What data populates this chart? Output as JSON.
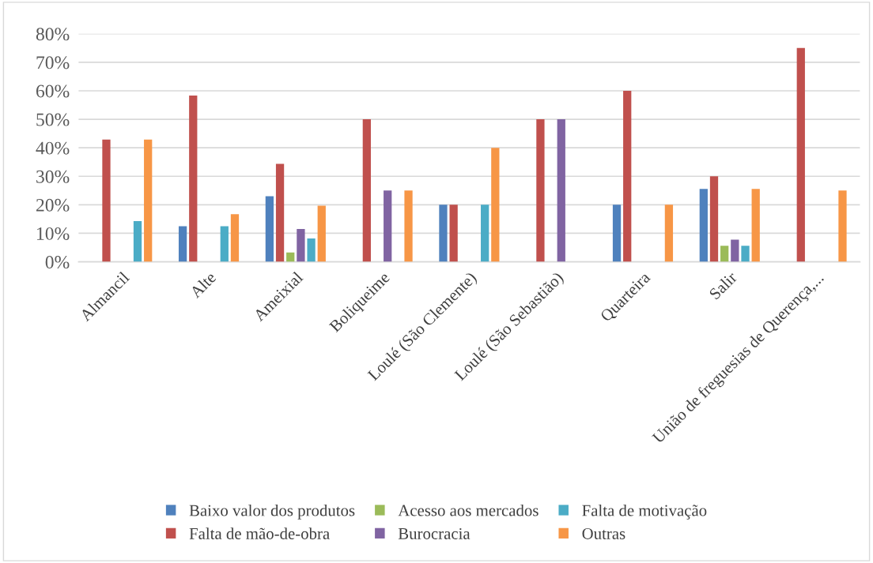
{
  "chart_data": {
    "type": "bar",
    "categories": [
      "Almancil",
      "Alte",
      "Ameixial",
      "Boliqueime",
      "Loulé (São Clemente)",
      "Loulé (São Sebastião)",
      "Quarteira",
      "Salir",
      "União de freguesias de Querença,..."
    ],
    "series": [
      {
        "name": "Baixo valor dos produtos",
        "color": "#4f81bd",
        "values": [
          0,
          12.5,
          23,
          0,
          20,
          0,
          20,
          25.6,
          0
        ]
      },
      {
        "name": "Falta de mão-de-obra",
        "color": "#c0504d",
        "values": [
          42.9,
          58.3,
          34.4,
          50,
          20,
          50,
          60,
          30,
          75
        ]
      },
      {
        "name": "Acesso aos mercados",
        "color": "#9bbb59",
        "values": [
          0,
          0,
          3.3,
          0,
          0,
          0,
          0,
          5.6,
          0
        ]
      },
      {
        "name": "Burocracia",
        "color": "#8064a2",
        "values": [
          0,
          0,
          11.5,
          25,
          0,
          50,
          0,
          7.8,
          0
        ]
      },
      {
        "name": "Falta de motivação",
        "color": "#4bacc6",
        "values": [
          14.3,
          12.5,
          8.2,
          0,
          20,
          0,
          0,
          5.6,
          0
        ]
      },
      {
        "name": "Outras",
        "color": "#f79646",
        "values": [
          42.9,
          16.7,
          19.7,
          25,
          40,
          0,
          20,
          25.6,
          25
        ]
      }
    ],
    "ylim": [
      0,
      80
    ],
    "yticks": [
      {
        "value": 0,
        "label": "0%"
      },
      {
        "value": 10,
        "label": "10%"
      },
      {
        "value": 20,
        "label": "20%"
      },
      {
        "value": 30,
        "label": "30%"
      },
      {
        "value": 40,
        "label": "40%"
      },
      {
        "value": 50,
        "label": "50%"
      },
      {
        "value": 60,
        "label": "60%"
      },
      {
        "value": 70,
        "label": "70%"
      },
      {
        "value": 80,
        "label": "80%"
      }
    ],
    "grid": "y",
    "legend": "bottom"
  }
}
